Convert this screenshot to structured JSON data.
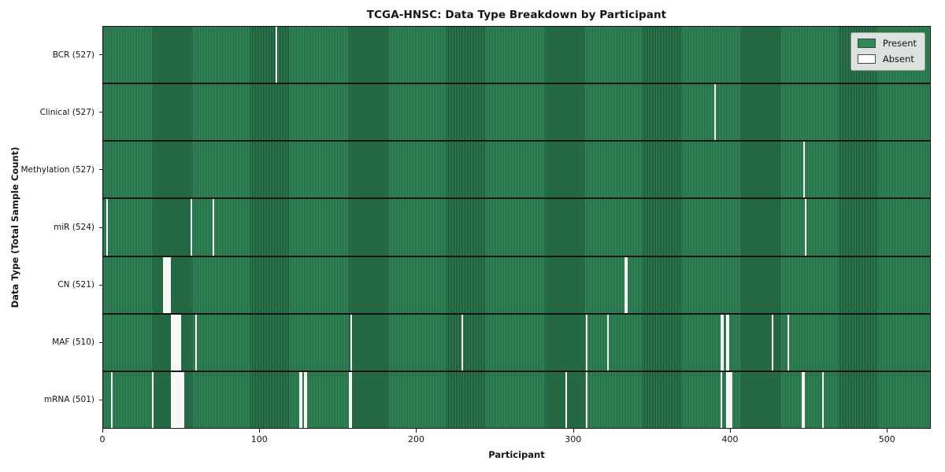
{
  "title": "TCGA-HNSC: Data Type Breakdown by Participant",
  "legend": {
    "present_label": "Present",
    "absent_label": "Absent"
  },
  "chart_data": {
    "type": "heatmap",
    "title": "TCGA-HNSC: Data Type Breakdown by Participant",
    "xlabel": "Participant",
    "ylabel": "Data Type (Total Sample Count)",
    "x_ticks": [
      0,
      100,
      200,
      300,
      400,
      500
    ],
    "xlim": [
      0,
      528
    ],
    "n_participants": 528,
    "grid": false,
    "legend_position": "upper right",
    "legend": [
      {
        "label": "Present",
        "color": "#2e8b57"
      },
      {
        "label": "Absent",
        "color": "#ffffff"
      }
    ],
    "present_color": "#2e8b57",
    "absent_color": "#ffffff",
    "rows": [
      {
        "name": "BCR",
        "label": "BCR (527)",
        "present_count": 527,
        "absent_participants": [
          110
        ]
      },
      {
        "name": "Clinical",
        "label": "Clinical (527)",
        "present_count": 527,
        "absent_participants": [
          390
        ]
      },
      {
        "name": "Methylation",
        "label": "Methylation (527)",
        "present_count": 527,
        "absent_participants": [
          447
        ]
      },
      {
        "name": "miR",
        "label": "miR (524)",
        "present_count": 524,
        "absent_participants": [
          2,
          56,
          70,
          448
        ]
      },
      {
        "name": "CN",
        "label": "CN (521)",
        "present_count": 521,
        "absent_participants": [
          38,
          39,
          40,
          41,
          42,
          333,
          334
        ]
      },
      {
        "name": "MAF",
        "label": "MAF (510)",
        "present_count": 510,
        "absent_participants": [
          43,
          44,
          45,
          46,
          47,
          48,
          49,
          59,
          158,
          229,
          308,
          322,
          394,
          395,
          398,
          399,
          427,
          437
        ]
      },
      {
        "name": "mRNA",
        "label": "mRNA (501)",
        "present_count": 501,
        "absent_participants": [
          5,
          31,
          43,
          44,
          45,
          46,
          47,
          48,
          49,
          50,
          51,
          125,
          126,
          128,
          129,
          157,
          158,
          295,
          308,
          394,
          398,
          399,
          400,
          401,
          446,
          447,
          459
        ]
      }
    ]
  }
}
